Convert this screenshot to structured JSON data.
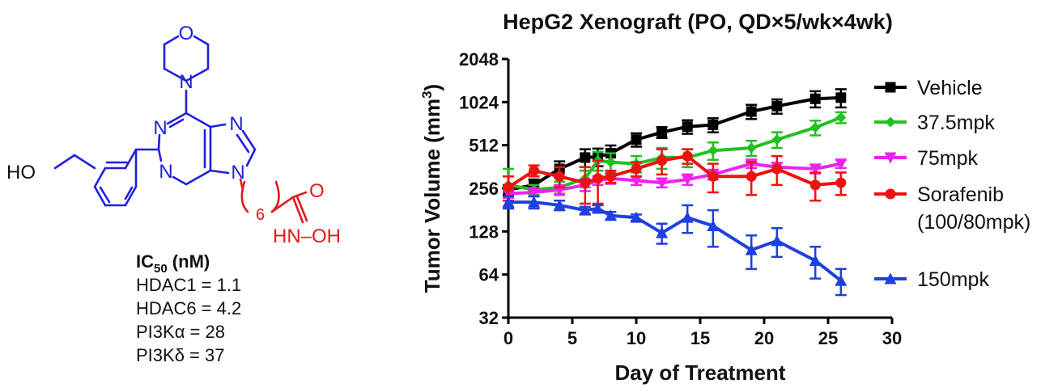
{
  "structure": {
    "atoms": {
      "o_morph": "O",
      "n_morph": "N",
      "n1": "N",
      "n3": "N",
      "n7": "N",
      "n9": "N",
      "ho": "HO",
      "linker_sub": "6",
      "amide_o": "O",
      "hydroxamate": "HN–OH"
    },
    "colors": {
      "core": "#1f1fe0",
      "linker": "#e3191c",
      "label": "#111111"
    }
  },
  "ic50": {
    "heading_prefix": "IC",
    "heading_sub": "50",
    "heading_suffix": " (nM)",
    "items": [
      "HDAC1 = 1.1",
      "HDAC6 = 4.2",
      "PI3Kα = 28",
      "PI3Kδ = 37"
    ]
  },
  "chart_data": {
    "type": "line",
    "title": "HepG2 Xenograft (PO, QD×5/wk×4wk)",
    "xlabel": "Day of Treatment",
    "ylabel_prefix": "Tumor Volume (mm",
    "ylabel_sup": "3",
    "ylabel_suffix": ")",
    "xlim": [
      0,
      30
    ],
    "ylim": [
      32,
      2048
    ],
    "yscale": "log2",
    "xticks": [
      "0",
      "5",
      "10",
      "15",
      "20",
      "25",
      "30"
    ],
    "yticks": [
      "32",
      "64",
      "128",
      "256",
      "512",
      "1024",
      "2048"
    ],
    "xtick_values": [
      0,
      5,
      10,
      15,
      20,
      25,
      30
    ],
    "ytick_values": [
      32,
      64,
      128,
      256,
      512,
      1024,
      2048
    ],
    "legend_placement": "right",
    "series": [
      {
        "name": "Vehicle",
        "color": "#000000",
        "marker": "square",
        "points": [
          [
            0,
            250,
            20
          ],
          [
            2,
            270,
            25
          ],
          [
            4,
            350,
            45
          ],
          [
            6,
            420,
            60
          ],
          [
            7,
            425,
            60
          ],
          [
            8,
            450,
            60
          ],
          [
            10,
            560,
            60
          ],
          [
            12,
            630,
            55
          ],
          [
            14,
            690,
            75
          ],
          [
            16,
            710,
            80
          ],
          [
            19,
            880,
            100
          ],
          [
            21,
            960,
            110
          ],
          [
            24,
            1080,
            140
          ],
          [
            26,
            1100,
            160
          ]
        ]
      },
      {
        "name": "37.5mpk",
        "color": "#22c022",
        "marker": "diamond",
        "points": [
          [
            0,
            270,
            80
          ],
          [
            2,
            250,
            20
          ],
          [
            4,
            260,
            25
          ],
          [
            6,
            300,
            40
          ],
          [
            7,
            400,
            60
          ],
          [
            8,
            390,
            60
          ],
          [
            10,
            380,
            50
          ],
          [
            12,
            420,
            70
          ],
          [
            14,
            420,
            60
          ],
          [
            16,
            470,
            65
          ],
          [
            19,
            490,
            60
          ],
          [
            21,
            560,
            70
          ],
          [
            24,
            680,
            80
          ],
          [
            26,
            800,
            70
          ]
        ]
      },
      {
        "name": "75mpk",
        "color": "#ee22ee",
        "marker": "triangle-down",
        "points": [
          [
            0,
            235,
            15
          ],
          [
            2,
            240,
            15
          ],
          [
            4,
            250,
            20
          ],
          [
            6,
            270,
            25
          ],
          [
            7,
            290,
            20
          ],
          [
            8,
            300,
            25
          ],
          [
            10,
            290,
            20
          ],
          [
            12,
            280,
            20
          ],
          [
            14,
            295,
            25
          ],
          [
            16,
            320,
            25
          ],
          [
            19,
            380,
            25
          ],
          [
            21,
            360,
            25
          ],
          [
            24,
            350,
            25
          ],
          [
            26,
            380,
            25
          ]
        ]
      },
      {
        "name": "Sorafenib",
        "color": "#ee1111",
        "marker": "circle",
        "points": [
          [
            0,
            260,
            50
          ],
          [
            2,
            340,
            30
          ],
          [
            4,
            310,
            50
          ],
          [
            6,
            280,
            80
          ],
          [
            7,
            300,
            100
          ],
          [
            8,
            310,
            30
          ],
          [
            10,
            350,
            40
          ],
          [
            12,
            400,
            80
          ],
          [
            14,
            430,
            50
          ],
          [
            16,
            310,
            70
          ],
          [
            19,
            310,
            80
          ],
          [
            21,
            350,
            80
          ],
          [
            24,
            270,
            60
          ],
          [
            26,
            280,
            50
          ]
        ]
      },
      {
        "name": "150mpk",
        "color": "#1f40e0",
        "marker": "triangle-up",
        "points": [
          [
            0,
            205,
            20
          ],
          [
            2,
            205,
            20
          ],
          [
            4,
            195,
            15
          ],
          [
            6,
            180,
            10
          ],
          [
            7,
            185,
            10
          ],
          [
            8,
            165,
            10
          ],
          [
            10,
            160,
            8
          ],
          [
            12,
            125,
            20
          ],
          [
            14,
            160,
            35
          ],
          [
            16,
            140,
            40
          ],
          [
            19,
            95,
            25
          ],
          [
            21,
            110,
            25
          ],
          [
            24,
            80,
            20
          ],
          [
            26,
            58,
            12
          ]
        ]
      }
    ],
    "legend": [
      {
        "label": "Vehicle"
      },
      {
        "label": "37.5mpk"
      },
      {
        "label": "75mpk"
      },
      {
        "label": "Sorafenib"
      },
      {
        "label": "(100/80mpk)"
      },
      {
        "label": "150mpk"
      }
    ]
  }
}
